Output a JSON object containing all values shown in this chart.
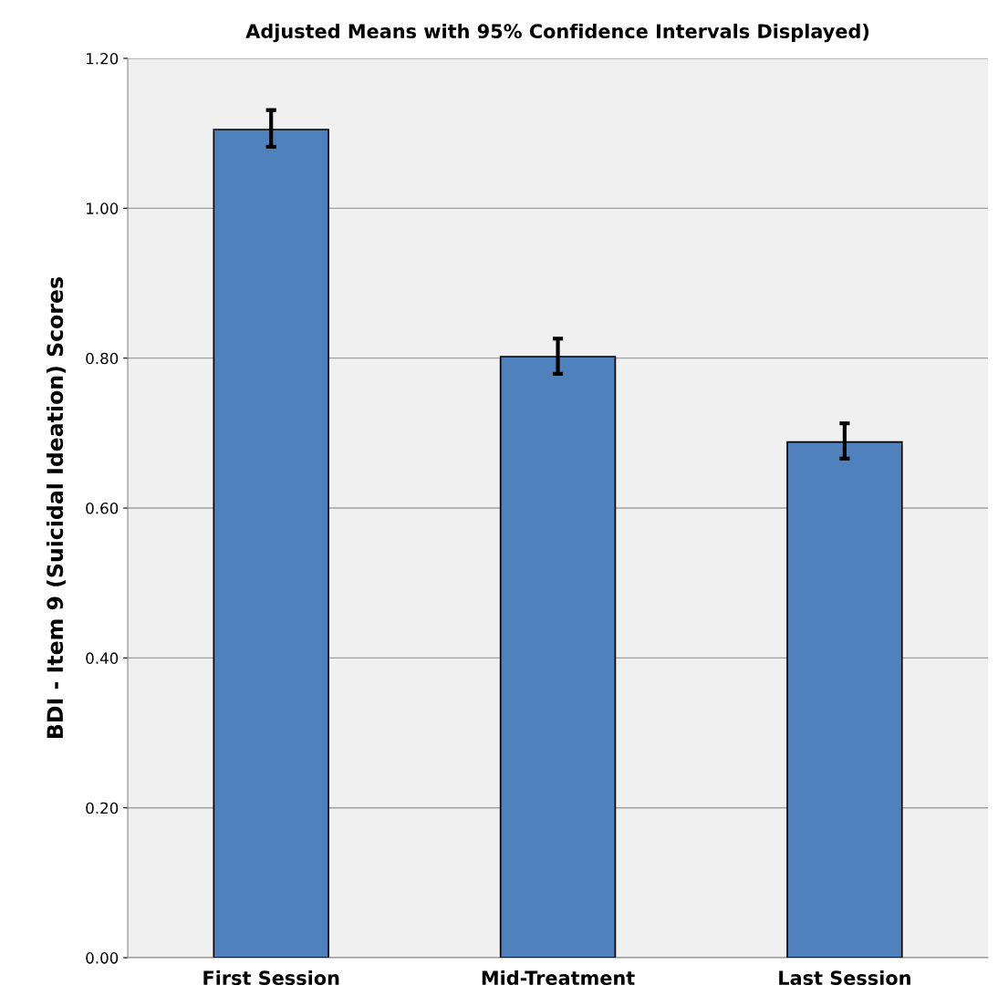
{
  "chart_data": {
    "type": "bar",
    "title": "Adjusted Means with 95% Confidence Intervals Displayed)",
    "ylabel": "BDI - Item 9 (Suicidal Ideation) Scores",
    "categories": [
      "First Session",
      "Mid-Treatment",
      "Last Session"
    ],
    "values": [
      1.105,
      0.802,
      0.688
    ],
    "errors": [
      [
        1.082,
        1.131
      ],
      [
        0.779,
        0.826
      ],
      [
        0.666,
        0.713
      ]
    ],
    "color": "#4f81bd",
    "ylim": [
      0,
      1.2
    ],
    "yticks": [
      {
        "value": 0,
        "label": "0.00"
      },
      {
        "value": 0.2,
        "label": "0.20"
      },
      {
        "value": 0.4,
        "label": "0.40"
      },
      {
        "value": 0.6,
        "label": "0.60"
      },
      {
        "value": 0.8,
        "label": "0.80"
      },
      {
        "value": 1.0,
        "label": "1.00"
      },
      {
        "value": 1.2,
        "label": "1.20"
      }
    ],
    "grid": "y",
    "legend": false
  }
}
